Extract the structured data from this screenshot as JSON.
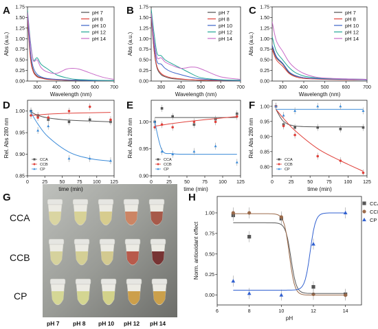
{
  "figure": {
    "panel_letters": [
      "A",
      "B",
      "C",
      "D",
      "E",
      "F",
      "G",
      "H"
    ],
    "photo": {
      "row_labels": [
        "CCA",
        "CCB",
        "CP"
      ],
      "col_labels": [
        "pH 7",
        "pH 8",
        "pH 10",
        "pH 12",
        "pH 14"
      ]
    }
  },
  "chart_data": [
    {
      "id": "A",
      "type": "line",
      "xlabel": "Wavelength (nm)",
      "ylabel": "Abs (a.u.)",
      "xlim": [
        250,
        700
      ],
      "ylim": [
        0,
        1.75
      ],
      "xticks": [
        "300",
        "400",
        "500",
        "600",
        "700"
      ],
      "yticks": [
        "0.00",
        "0.25",
        "0.50",
        "0.75",
        "1.00",
        "1.25",
        "1.50",
        "1.75"
      ],
      "legend_position": "top-right",
      "series": [
        {
          "name": "pH 7",
          "color": "#4d4d4d",
          "x": [
            250,
            265,
            280,
            300,
            320,
            350,
            400,
            450,
            500,
            600,
            700
          ],
          "y": [
            1.55,
            0.6,
            0.25,
            0.12,
            0.08,
            0.05,
            0.03,
            0.02,
            0.02,
            0.01,
            0.01
          ]
        },
        {
          "name": "pH 8",
          "color": "#e0403a",
          "x": [
            250,
            265,
            280,
            300,
            320,
            350,
            400,
            450,
            500,
            600,
            700
          ],
          "y": [
            1.5,
            0.55,
            0.22,
            0.1,
            0.07,
            0.04,
            0.03,
            0.02,
            0.02,
            0.01,
            0.01
          ]
        },
        {
          "name": "pH 10",
          "color": "#3a62c8",
          "x": [
            250,
            265,
            280,
            300,
            320,
            350,
            400,
            450,
            500,
            600,
            700
          ],
          "y": [
            1.6,
            0.7,
            0.32,
            0.16,
            0.1,
            0.06,
            0.04,
            0.03,
            0.02,
            0.01,
            0.01
          ]
        },
        {
          "name": "pH 12",
          "color": "#20a596",
          "x": [
            250,
            265,
            280,
            300,
            320,
            350,
            400,
            450,
            500,
            600,
            700
          ],
          "y": [
            1.68,
            0.95,
            0.5,
            0.55,
            0.4,
            0.3,
            0.15,
            0.08,
            0.04,
            0.02,
            0.01
          ]
        },
        {
          "name": "pH 14",
          "color": "#c86ac8",
          "x": [
            250,
            265,
            280,
            300,
            320,
            350,
            400,
            450,
            480,
            520,
            600,
            650,
            700
          ],
          "y": [
            1.62,
            0.9,
            0.48,
            0.5,
            0.32,
            0.22,
            0.18,
            0.28,
            0.3,
            0.28,
            0.15,
            0.08,
            0.04
          ]
        }
      ]
    },
    {
      "id": "B",
      "type": "line",
      "xlabel": "Wavelength (nm)",
      "ylabel": "Abs (a.u.)",
      "xlim": [
        250,
        700
      ],
      "ylim": [
        0,
        1.75
      ],
      "xticks": [
        "300",
        "400",
        "500",
        "600",
        "700"
      ],
      "yticks": [
        "0.00",
        "0.25",
        "0.50",
        "0.75",
        "1.00",
        "1.25",
        "1.50",
        "1.75"
      ],
      "legend_position": "top-right",
      "series": [
        {
          "name": "pH 7",
          "color": "#4d4d4d",
          "x": [
            250,
            265,
            280,
            300,
            320,
            350,
            400,
            450,
            500,
            600,
            700
          ],
          "y": [
            1.55,
            0.7,
            0.3,
            0.15,
            0.1,
            0.06,
            0.04,
            0.03,
            0.02,
            0.01,
            0.01
          ]
        },
        {
          "name": "pH 8",
          "color": "#e0403a",
          "x": [
            250,
            265,
            280,
            300,
            320,
            350,
            400,
            450,
            500,
            600,
            700
          ],
          "y": [
            1.58,
            0.72,
            0.33,
            0.18,
            0.12,
            0.08,
            0.05,
            0.03,
            0.02,
            0.01,
            0.01
          ]
        },
        {
          "name": "pH 10",
          "color": "#3a62c8",
          "x": [
            250,
            265,
            280,
            300,
            320,
            350,
            400,
            450,
            500,
            600,
            700
          ],
          "y": [
            1.62,
            0.85,
            0.45,
            0.4,
            0.3,
            0.22,
            0.15,
            0.09,
            0.05,
            0.02,
            0.01
          ]
        },
        {
          "name": "pH 12",
          "color": "#20a596",
          "x": [
            250,
            265,
            280,
            300,
            320,
            350,
            400,
            450,
            500,
            600,
            700
          ],
          "y": [
            1.7,
            1.1,
            0.65,
            0.6,
            0.5,
            0.42,
            0.3,
            0.18,
            0.08,
            0.03,
            0.02
          ]
        },
        {
          "name": "pH 14",
          "color": "#c86ac8",
          "x": [
            250,
            265,
            280,
            300,
            320,
            350,
            400,
            450,
            480,
            520,
            600,
            700
          ],
          "y": [
            1.6,
            0.95,
            0.55,
            0.55,
            0.45,
            0.38,
            0.3,
            0.33,
            0.32,
            0.25,
            0.1,
            0.04
          ]
        }
      ]
    },
    {
      "id": "C",
      "type": "line",
      "xlabel": "Wavelength (nm)",
      "ylabel": "Abs (a.u.)",
      "xlim": [
        250,
        700
      ],
      "ylim": [
        0,
        1.75
      ],
      "xticks": [
        "300",
        "400",
        "500",
        "600",
        "700"
      ],
      "yticks": [
        "0.00",
        "0.25",
        "0.50",
        "0.75",
        "1.00",
        "1.25",
        "1.50",
        "1.75"
      ],
      "legend_position": "top-right",
      "series": [
        {
          "name": "pH 7",
          "color": "#4d4d4d",
          "x": [
            250,
            270,
            300,
            330,
            360,
            400,
            450,
            500,
            600,
            700
          ],
          "y": [
            0.8,
            0.55,
            0.4,
            0.2,
            0.12,
            0.08,
            0.06,
            0.05,
            0.04,
            0.03
          ]
        },
        {
          "name": "pH 8",
          "color": "#e0403a",
          "x": [
            250,
            270,
            300,
            330,
            360,
            400,
            450,
            500,
            600,
            700
          ],
          "y": [
            0.75,
            0.5,
            0.35,
            0.18,
            0.1,
            0.06,
            0.05,
            0.04,
            0.03,
            0.03
          ]
        },
        {
          "name": "pH 10",
          "color": "#3a62c8",
          "x": [
            250,
            270,
            300,
            330,
            360,
            400,
            450,
            500,
            600,
            700
          ],
          "y": [
            0.85,
            0.58,
            0.42,
            0.22,
            0.13,
            0.08,
            0.06,
            0.05,
            0.04,
            0.03
          ]
        },
        {
          "name": "pH 12",
          "color": "#20a596",
          "x": [
            250,
            270,
            300,
            330,
            360,
            400,
            450,
            500,
            600,
            700
          ],
          "y": [
            1.05,
            0.7,
            0.5,
            0.32,
            0.2,
            0.12,
            0.08,
            0.06,
            0.05,
            0.04
          ]
        },
        {
          "name": "pH 14",
          "color": "#c86ac8",
          "x": [
            250,
            270,
            300,
            330,
            360,
            400,
            450,
            500,
            600,
            700
          ],
          "y": [
            1.4,
            0.95,
            0.7,
            0.45,
            0.3,
            0.18,
            0.1,
            0.07,
            0.05,
            0.04
          ]
        }
      ]
    },
    {
      "id": "D",
      "type": "scatter",
      "xlabel": "time (min)",
      "ylabel": "Rel. Abs 280 nm",
      "xlim": [
        0,
        125
      ],
      "ylim": [
        0.85,
        1.025
      ],
      "xticks": [
        "0",
        "25",
        "50",
        "75",
        "100",
        "125"
      ],
      "yticks": [
        "0.85",
        "0.90",
        "0.95",
        "1.00"
      ],
      "legend_position": "bottom-left",
      "series": [
        {
          "name": "CCA",
          "color": "#555555",
          "marker": "square",
          "x": [
            5,
            15,
            30,
            60,
            90,
            120
          ],
          "y": [
            1.0,
            0.99,
            0.98,
            0.975,
            0.98,
            0.975
          ],
          "fit_y": [
            0.998,
            0.99,
            0.984,
            0.979,
            0.977,
            0.975
          ]
        },
        {
          "name": "CCB",
          "color": "#e0403a",
          "marker": "circle",
          "x": [
            5,
            15,
            30,
            60,
            90,
            120
          ],
          "y": [
            0.99,
            0.985,
            0.985,
            1.0,
            1.01,
            0.98
          ],
          "fit_y": [
            0.99,
            0.991,
            0.993,
            0.995,
            0.996,
            0.997
          ]
        },
        {
          "name": "CP",
          "color": "#3a8ad8",
          "marker": "triangle",
          "x": [
            5,
            15,
            30,
            60,
            90,
            120
          ],
          "y": [
            1.0,
            0.955,
            0.965,
            0.89,
            0.89,
            0.885
          ],
          "fit_y": [
            0.997,
            0.97,
            0.94,
            0.905,
            0.89,
            0.884
          ]
        }
      ]
    },
    {
      "id": "E",
      "type": "scatter",
      "xlabel": "time (min)",
      "ylabel": "Rel. Abs 280 nm",
      "xlim": [
        0,
        125
      ],
      "ylim": [
        0.9,
        1.04
      ],
      "xticks": [
        "0",
        "25",
        "50",
        "75",
        "100",
        "125"
      ],
      "yticks": [
        "0.90",
        "0.95",
        "1.00"
      ],
      "legend_position": "bottom-left",
      "series": [
        {
          "name": "CCA",
          "color": "#555555",
          "marker": "square",
          "x": [
            5,
            15,
            30,
            60,
            90,
            120
          ],
          "y": [
            1.0,
            1.025,
            1.01,
            0.995,
            1.005,
            1.015
          ],
          "fit_y": [
            1.008,
            1.008,
            1.008,
            1.008,
            1.008,
            1.008
          ]
        },
        {
          "name": "CCB",
          "color": "#e0403a",
          "marker": "circle",
          "x": [
            5,
            15,
            30,
            60,
            90,
            120
          ],
          "y": [
            0.99,
            0.995,
            0.99,
            1.0,
            1.0,
            1.01
          ],
          "fit_y": [
            0.992,
            0.994,
            0.997,
            1.002,
            1.006,
            1.01
          ]
        },
        {
          "name": "CP",
          "color": "#3a8ad8",
          "marker": "triangle",
          "x": [
            5,
            15,
            30,
            60,
            90,
            120
          ],
          "y": [
            1.0,
            0.945,
            0.94,
            0.945,
            0.955,
            0.925
          ],
          "fit_y": [
            1.0,
            0.948,
            0.941,
            0.94,
            0.94,
            0.94
          ]
        }
      ]
    },
    {
      "id": "F",
      "type": "scatter",
      "xlabel": "time (min)",
      "ylabel": "Rel. Abs 280 nm",
      "xlim": [
        0,
        125
      ],
      "ylim": [
        0.77,
        1.02
      ],
      "xticks": [
        "0",
        "25",
        "50",
        "75",
        "100",
        "125"
      ],
      "yticks": [
        "0.80",
        "0.85",
        "0.90",
        "0.95",
        "1.00"
      ],
      "legend_position": "bottom-left",
      "series": [
        {
          "name": "CCA",
          "color": "#555555",
          "marker": "square",
          "x": [
            5,
            15,
            30,
            60,
            90,
            120
          ],
          "y": [
            1.0,
            0.94,
            0.93,
            0.93,
            0.925,
            0.93
          ],
          "fit_y": [
            0.99,
            0.95,
            0.935,
            0.932,
            0.932,
            0.932
          ]
        },
        {
          "name": "CCB",
          "color": "#e0403a",
          "marker": "circle",
          "x": [
            5,
            15,
            30,
            60,
            90,
            120
          ],
          "y": [
            1.0,
            0.935,
            0.905,
            0.835,
            0.82,
            0.78
          ],
          "fit_y": [
            0.99,
            0.96,
            0.92,
            0.86,
            0.82,
            0.785
          ]
        },
        {
          "name": "CP",
          "color": "#3a8ad8",
          "marker": "triangle",
          "x": [
            5,
            15,
            30,
            60,
            90,
            120
          ],
          "y": [
            1.0,
            0.97,
            0.985,
            1.0,
            1.0,
            0.985
          ],
          "fit_y": [
            0.99,
            0.99,
            0.99,
            0.99,
            0.99,
            0.99
          ]
        }
      ]
    },
    {
      "id": "H",
      "type": "scatter",
      "xlabel": "pH",
      "ylabel": "Norm. antioxidant effect",
      "xlim": [
        6,
        15
      ],
      "ylim": [
        -0.12,
        1.2
      ],
      "xticks": [
        "6",
        "8",
        "10",
        "12",
        "14"
      ],
      "yticks": [
        "0.00",
        "0.25",
        "0.50",
        "0.75",
        "1.00"
      ],
      "legend_position": "top-right",
      "series": [
        {
          "name": "CCA",
          "color": "#555555",
          "marker": "square",
          "x": [
            7,
            8,
            10,
            12,
            14
          ],
          "y": [
            0.97,
            0.71,
            0.93,
            0.1,
            0.01
          ]
        },
        {
          "name": "CCB",
          "color": "#9b6a4a",
          "marker": "circle",
          "x": [
            7,
            8,
            10,
            12,
            14
          ],
          "y": [
            1.0,
            1.0,
            0.95,
            0.01,
            0.0
          ]
        },
        {
          "name": "CP",
          "color": "#2f5fd0",
          "marker": "triangle",
          "x": [
            7,
            8,
            10,
            12,
            14
          ],
          "y": [
            0.17,
            0.02,
            0.0,
            0.62,
            1.0
          ]
        }
      ]
    }
  ]
}
